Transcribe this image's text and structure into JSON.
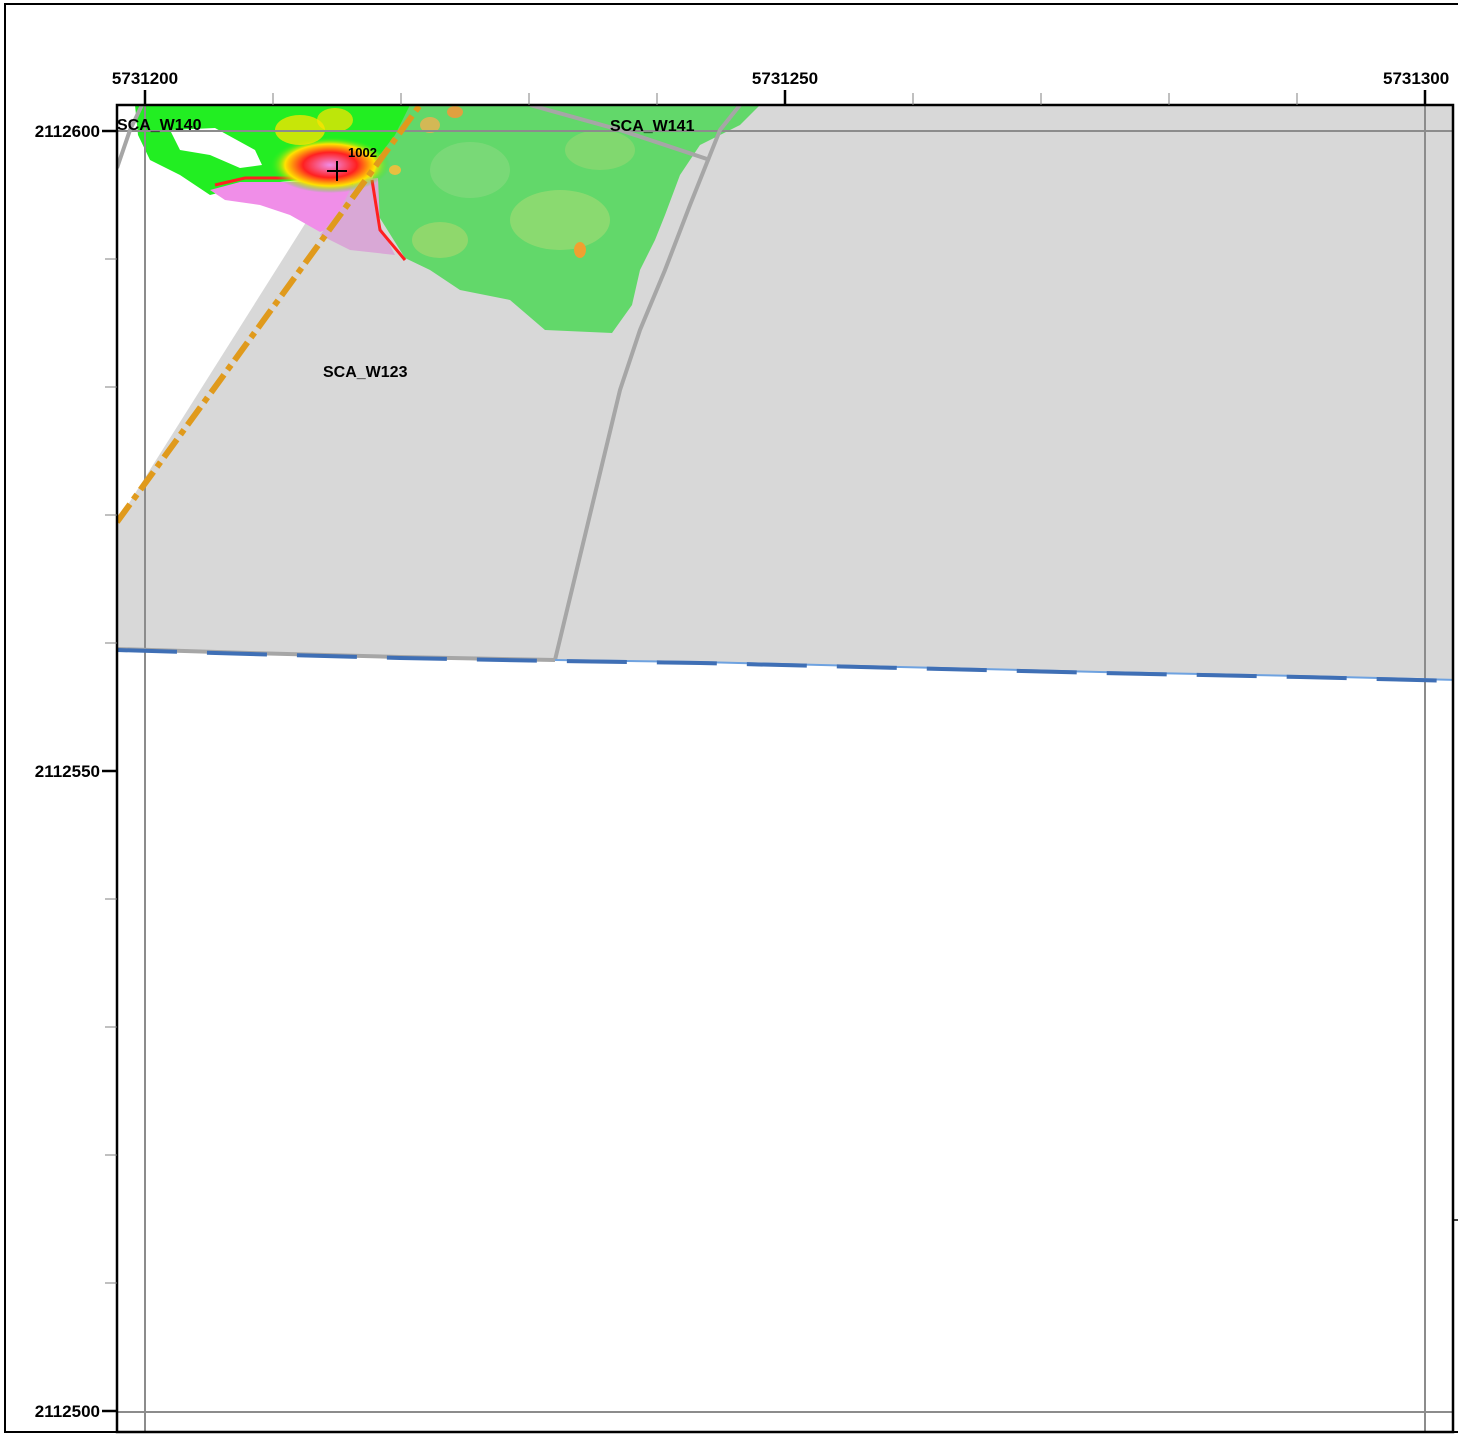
{
  "map": {
    "x_axis_labels": [
      "5731200",
      "5731250",
      "5731300"
    ],
    "y_axis_labels": [
      "2112600",
      "2112550",
      "2112500"
    ],
    "zone_labels": {
      "w140": "SCA_W140",
      "w141": "SCA_W141",
      "w123": "SCA_W123"
    },
    "point_label": "1002",
    "colors": {
      "zone_fill": "#d8d8d8",
      "zone_boundary": "#a6a6a6",
      "orange_boundary": "#e09a1c",
      "blue_boundary": "#3f6fb5",
      "grid_line": "#8c8c8c",
      "frame": "#000000",
      "raster_green": "#62d86a",
      "raster_bright_green": "#22ee22",
      "raster_yellow": "#ffe300",
      "raster_red": "#ff2020",
      "raster_pink": "#f08ee8",
      "raster_mauve": "#d9a8d6"
    }
  }
}
